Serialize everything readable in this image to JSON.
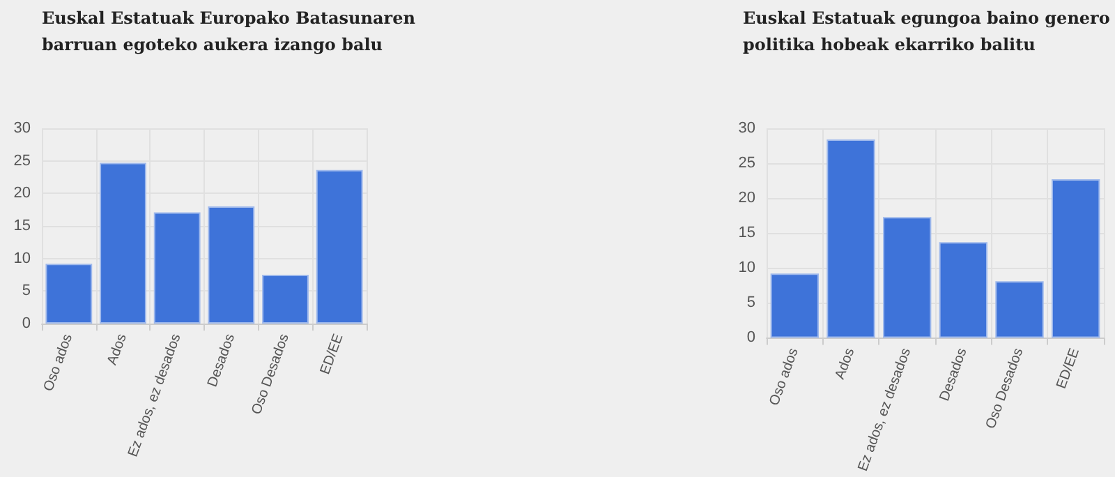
{
  "chart_data": [
    {
      "type": "bar",
      "title": "Euskal Estatuak Europako Batasunaren barruan egoteko aukera izango balu",
      "categories": [
        "Oso ados",
        "Ados",
        "Ez ados, ez desados",
        "Desados",
        "Oso Desados",
        "ED/EE"
      ],
      "values": [
        9.2,
        24.7,
        17.1,
        18.0,
        7.5,
        23.6
      ],
      "color": "#3e73d9",
      "ylim": [
        0,
        30
      ],
      "yticks": [
        0,
        5,
        10,
        15,
        20,
        25,
        30
      ],
      "grid": true
    },
    {
      "type": "bar",
      "title": "Euskal Estatuak egungoa baino genero politika hobeak ekarriko balitu",
      "categories": [
        "Oso ados",
        "Ados",
        "Ez ados, ez desados",
        "Desados",
        "Oso Desados",
        "ED/EE"
      ],
      "values": [
        9.2,
        28.4,
        17.3,
        13.7,
        8.1,
        22.7
      ],
      "color": "#3e73d9",
      "ylim": [
        0,
        30
      ],
      "yticks": [
        0,
        5,
        10,
        15,
        20,
        25,
        30
      ],
      "grid": true
    }
  ]
}
